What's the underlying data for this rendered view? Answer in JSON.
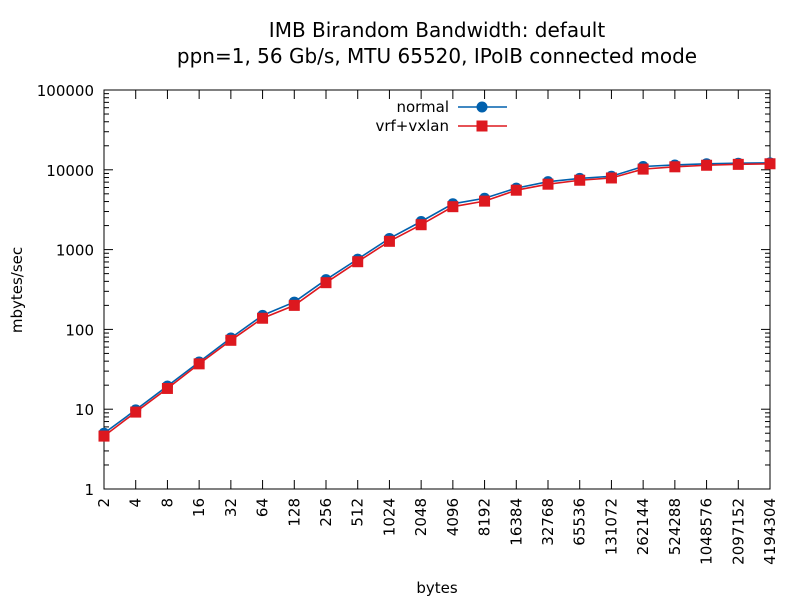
{
  "chart_data": {
    "type": "line",
    "title_line1": "IMB Birandom Bandwidth: default",
    "title_line2": "ppn=1, 56 Gb/s, MTU 65520, IPoIB connected mode",
    "xlabel": "bytes",
    "ylabel": "mbytes/sec",
    "x_scale": "log",
    "y_scale": "log",
    "xlim": [
      2,
      4194304
    ],
    "ylim": [
      1,
      100000
    ],
    "grid": false,
    "legend_position": "top-center",
    "x_ticks": [
      "2",
      "4",
      "8",
      "16",
      "32",
      "64",
      "128",
      "256",
      "512",
      "1024",
      "2048",
      "4096",
      "8192",
      "16384",
      "32768",
      "65536",
      "131072",
      "262144",
      "524288",
      "1048576",
      "2097152",
      "4194304"
    ],
    "y_ticks": [
      "1",
      "10",
      "100",
      "1000",
      "10000",
      "100000"
    ],
    "x": [
      2,
      4,
      8,
      16,
      32,
      64,
      128,
      256,
      512,
      1024,
      2048,
      4096,
      8192,
      16384,
      32768,
      65536,
      131072,
      262144,
      524288,
      1048576,
      2097152,
      4194304
    ],
    "series": [
      {
        "name": "normal",
        "color": "#0060ad",
        "marker": "circle",
        "values": [
          5.0,
          9.8,
          19.5,
          39,
          78,
          150,
          220,
          420,
          760,
          1380,
          2250,
          3750,
          4400,
          5900,
          7100,
          7800,
          8300,
          11000,
          11500,
          11900,
          12100,
          12200
        ]
      },
      {
        "name": "vrf+vxlan",
        "color": "#dd181f",
        "marker": "square",
        "values": [
          4.6,
          9.2,
          18.2,
          37,
          73,
          138,
          200,
          385,
          705,
          1270,
          2050,
          3450,
          4050,
          5550,
          6600,
          7400,
          7900,
          10200,
          10900,
          11400,
          11700,
          11900
        ]
      }
    ]
  }
}
